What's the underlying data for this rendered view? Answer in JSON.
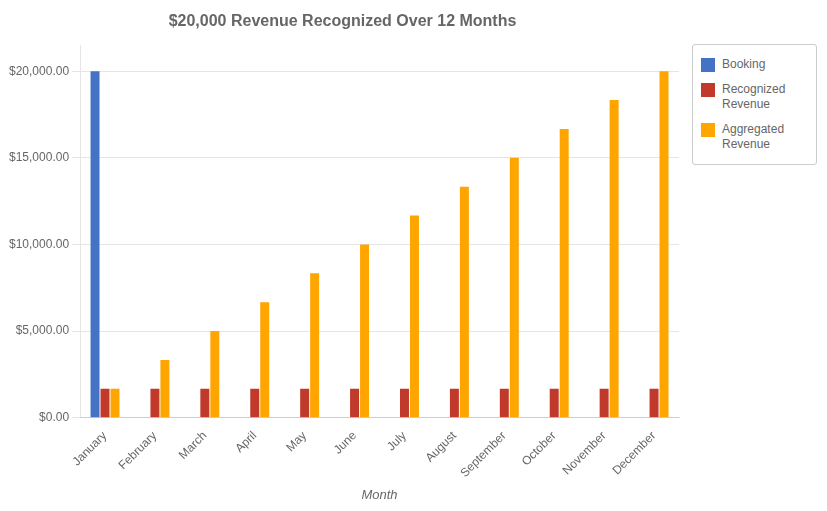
{
  "chart_data": {
    "type": "bar",
    "title": "$20,000 Revenue Recognized Over 12 Months",
    "xlabel": "Month",
    "categories": [
      "January",
      "February",
      "March",
      "April",
      "May",
      "June",
      "July",
      "August",
      "September",
      "October",
      "November",
      "December"
    ],
    "series": [
      {
        "name": "Booking",
        "color": "#4472C4",
        "values": [
          20000,
          0,
          0,
          0,
          0,
          0,
          0,
          0,
          0,
          0,
          0,
          0
        ]
      },
      {
        "name": "Recognized\nRevenue",
        "color": "#C0392B",
        "values": [
          1666.67,
          1666.67,
          1666.67,
          1666.67,
          1666.67,
          1666.67,
          1666.67,
          1666.67,
          1666.67,
          1666.67,
          1666.67,
          1666.67
        ]
      },
      {
        "name": "Aggregated\nRevenue",
        "color": "#FFA500",
        "values": [
          1666.67,
          3333.33,
          5000.0,
          6666.67,
          8333.33,
          10000.0,
          11666.67,
          13333.33,
          15000.0,
          16666.67,
          18333.33,
          20000.0
        ]
      }
    ],
    "ylim": [
      0,
      21500
    ],
    "yticks": [
      {
        "value": 0,
        "label": "$0.00"
      },
      {
        "value": 5000,
        "label": "$5,000.00"
      },
      {
        "value": 10000,
        "label": "$10,000.00"
      },
      {
        "value": 15000,
        "label": "$15,000.00"
      },
      {
        "value": 20000,
        "label": "$20,000.00"
      }
    ],
    "grid": true,
    "legend": "right"
  }
}
